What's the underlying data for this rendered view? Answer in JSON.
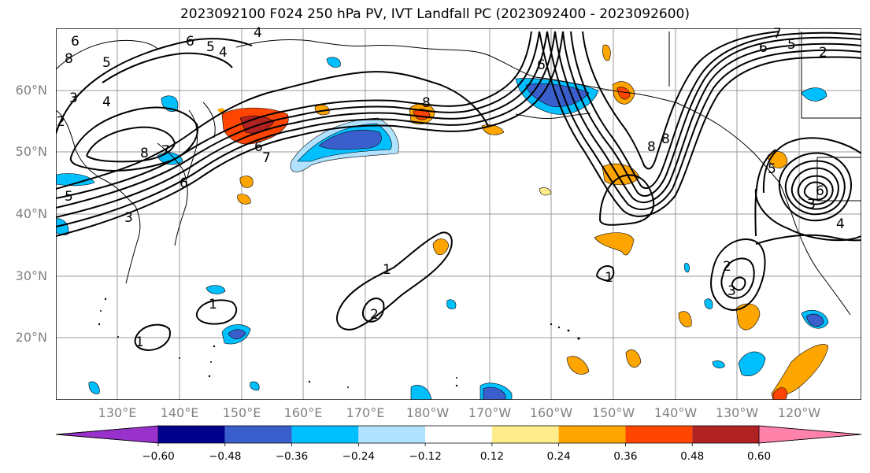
{
  "map": {
    "title": "2023092100 F024 250 hPa PV, IVT Landfall PC (2023092400 - 2023092600)",
    "lat_labels": [
      "60°N",
      "50°N",
      "40°N",
      "30°N",
      "20°N"
    ],
    "lon_labels": [
      "130°E",
      "140°E",
      "150°E",
      "160°E",
      "170°E",
      "180°W",
      "170°W",
      "160°W",
      "150°W",
      "140°W",
      "130°W",
      "120°W"
    ],
    "contour_labels": [
      "6",
      "5",
      "4",
      "6",
      "5",
      "4",
      "8",
      "3",
      "2",
      "4",
      "8",
      "7",
      "6",
      "5",
      "3",
      "8",
      "8",
      "1",
      "2",
      "1",
      "2",
      "3",
      "1",
      "7",
      "8",
      "6",
      "5",
      "6",
      "2",
      "5",
      "4",
      "6",
      "1",
      "3",
      "7",
      "6"
    ]
  },
  "colorbar": {
    "tick_labels": [
      "−0.60",
      "−0.48",
      "−0.36",
      "−0.24",
      "−0.12",
      "0.12",
      "0.24",
      "0.36",
      "0.48",
      "0.60"
    ],
    "colors": [
      "#9932cc",
      "#00008b",
      "#3a5fcd",
      "#00bfff",
      "#b0e2ff",
      "#ffffff",
      "#ffec8b",
      "#ffa500",
      "#ff4500",
      "#b22222",
      "#ff82ab"
    ]
  }
}
